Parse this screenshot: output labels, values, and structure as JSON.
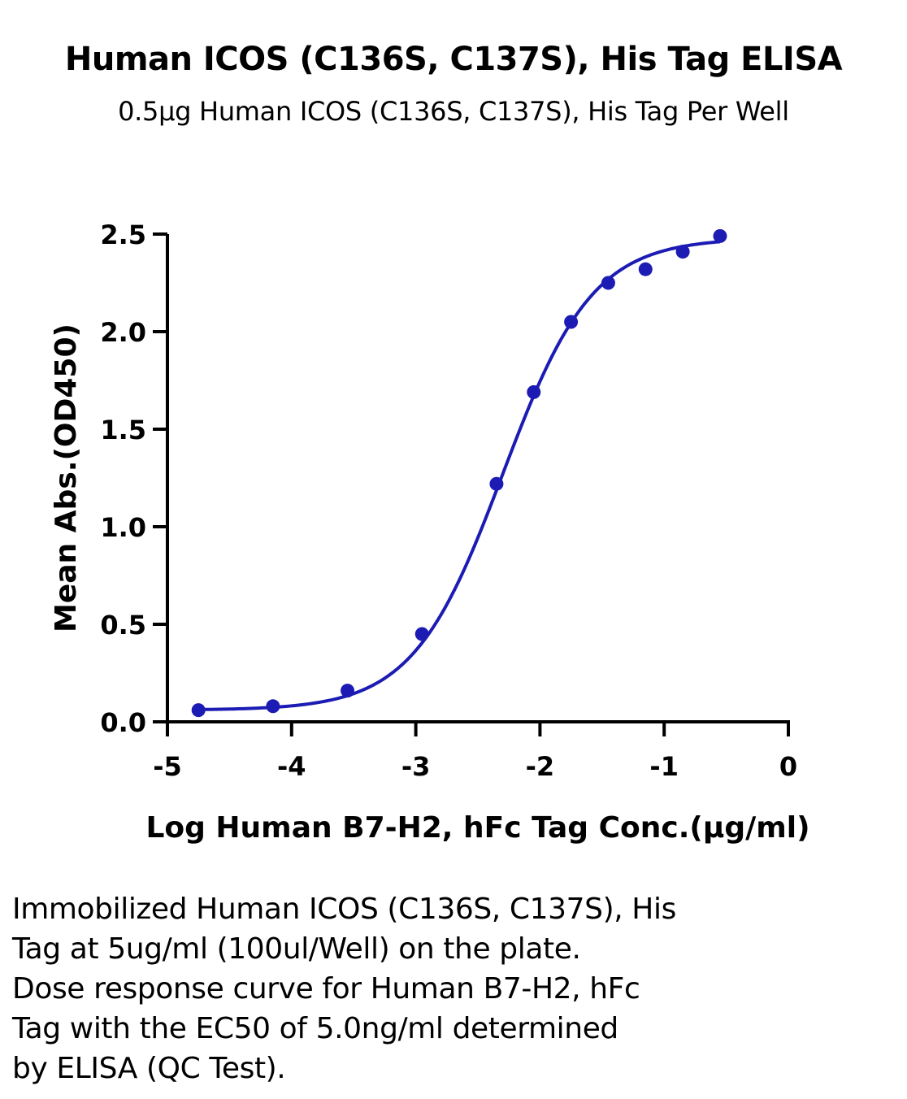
{
  "chart_data": {
    "type": "scatter",
    "title": "Human ICOS (C136S, C137S), His Tag ELISA",
    "subtitle": "0.5μg Human ICOS (C136S, C137S), His Tag Per Well",
    "xlabel": "Log Human B7-H2, hFc  Tag Conc.(μg/ml)",
    "ylabel": "Mean Abs.(OD450)",
    "xlim": [
      -5,
      0
    ],
    "ylim": [
      0,
      2.5
    ],
    "xticks": [
      -5,
      -4,
      -3,
      -2,
      -1,
      0
    ],
    "xtick_labels": [
      "-5",
      "-4",
      "-3",
      "-2",
      "-1",
      "0"
    ],
    "yticks": [
      0,
      0.5,
      1.0,
      1.5,
      2.0,
      2.5
    ],
    "ytick_labels": [
      "0.0",
      "0.5",
      "1.0",
      "1.5",
      "2.0",
      "2.5"
    ],
    "grid": false,
    "color": "#1c1cb4",
    "points": [
      {
        "x": -4.75,
        "y": 0.06
      },
      {
        "x": -4.15,
        "y": 0.08
      },
      {
        "x": -3.55,
        "y": 0.16
      },
      {
        "x": -2.95,
        "y": 0.45
      },
      {
        "x": -2.35,
        "y": 1.22
      },
      {
        "x": -2.05,
        "y": 1.69
      },
      {
        "x": -1.75,
        "y": 2.05
      },
      {
        "x": -1.45,
        "y": 2.25
      },
      {
        "x": -1.15,
        "y": 2.32
      },
      {
        "x": -0.85,
        "y": 2.41
      },
      {
        "x": -0.55,
        "y": 2.49
      }
    ],
    "fit": {
      "model": "4PL",
      "bottom": 0.06,
      "top": 2.48,
      "logEC50": -2.3,
      "hill": 1.2,
      "x_range": [
        -4.75,
        -0.55
      ]
    }
  },
  "caption_lines": [
    "Immobilized Human ICOS (C136S, C137S), His",
    "Tag at 5ug/ml (100ul/Well) on the plate.",
    "Dose response curve for Human B7-H2, hFc",
    "Tag with the EC50 of 5.0ng/ml determined",
    "by ELISA (QC Test)."
  ]
}
